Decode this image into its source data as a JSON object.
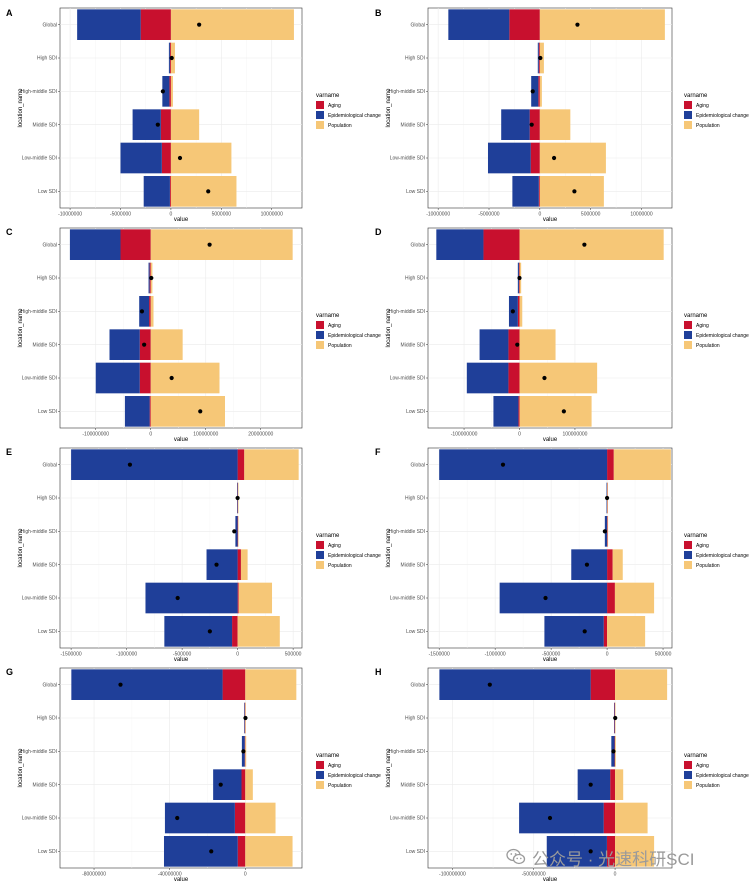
{
  "colors": {
    "Aging": "#C8102E",
    "Epidemiological change": "#1F3F99",
    "Population": "#F6C777"
  },
  "legend": {
    "title": "varname",
    "items": [
      "Aging",
      "Epidemiological change",
      "Population"
    ]
  },
  "watermark": {
    "text": "公众号 · 光速科研SCI",
    "icon": "wechat-icon"
  },
  "chart_data": [
    {
      "panel": "A",
      "type": "bar",
      "orientation": "horizontal",
      "stacked": "diverging",
      "xlabel": "value",
      "ylabel": "location_name",
      "xlim": [
        -11000000,
        13000000
      ],
      "xticks": [
        -10000000,
        -5000000,
        0,
        5000000,
        10000000
      ],
      "xticklabels": [
        "-10000000",
        "-5000000",
        "0",
        "5000000",
        "10000000"
      ],
      "categories": [
        "Global",
        "High SDI",
        "High-middle SDI",
        "Middle SDI",
        "Low-middle SDI",
        "Low SDI"
      ],
      "series": [
        {
          "name": "Aging",
          "values": [
            -3000000,
            -100000,
            -150000,
            -1000000,
            -900000,
            -100000
          ]
        },
        {
          "name": "Epidemiological change",
          "values": [
            -6300000,
            -100000,
            -700000,
            -2800000,
            -4100000,
            -2600000
          ]
        },
        {
          "name": "Population",
          "values": [
            12200000,
            400000,
            200000,
            2800000,
            6000000,
            6500000
          ]
        }
      ],
      "points": [
        2800000,
        80000,
        -800000,
        -1300000,
        900000,
        3700000
      ]
    },
    {
      "panel": "B",
      "type": "bar",
      "orientation": "horizontal",
      "stacked": "diverging",
      "xlabel": "value",
      "ylabel": "location_name",
      "xlim": [
        -11000000,
        13000000
      ],
      "xticks": [
        -10000000,
        -5000000,
        0,
        5000000,
        10000000
      ],
      "xticklabels": [
        "-10000000",
        "-5000000",
        "0",
        "5000000",
        "10000000"
      ],
      "categories": [
        "Global",
        "High SDI",
        "High-middle SDI",
        "Middle SDI",
        "Low-middle SDI",
        "Low SDI"
      ],
      "series": [
        {
          "name": "Aging",
          "values": [
            -3000000,
            -100000,
            -150000,
            -1000000,
            -900000,
            -100000
          ]
        },
        {
          "name": "Epidemiological change",
          "values": [
            -6000000,
            -100000,
            -700000,
            -2800000,
            -4200000,
            -2600000
          ]
        },
        {
          "name": "Population",
          "values": [
            12300000,
            400000,
            200000,
            3000000,
            6500000,
            6300000
          ]
        }
      ],
      "points": [
        3700000,
        50000,
        -700000,
        -800000,
        1400000,
        3400000
      ]
    },
    {
      "panel": "C",
      "type": "bar",
      "orientation": "horizontal",
      "stacked": "diverging",
      "xlabel": "value",
      "ylabel": "location_name",
      "xlim": [
        -165000000,
        275000000
      ],
      "xticks": [
        -100000000,
        0,
        100000000,
        200000000
      ],
      "xticklabels": [
        "-100000000",
        "0",
        "100000000",
        "200000000"
      ],
      "categories": [
        "Global",
        "High SDI",
        "High-middle SDI",
        "Middle SDI",
        "Low-middle SDI",
        "Low SDI"
      ],
      "series": [
        {
          "name": "Aging",
          "values": [
            -55000000,
            -2000000,
            -3000000,
            -20000000,
            -20000000,
            -2000000
          ]
        },
        {
          "name": "Epidemiological change",
          "values": [
            -92000000,
            -2000000,
            -18000000,
            -55000000,
            -80000000,
            -45000000
          ]
        },
        {
          "name": "Population",
          "values": [
            258000000,
            3000000,
            5000000,
            58000000,
            125000000,
            135000000
          ]
        }
      ],
      "points": [
        107000000,
        1000000,
        -16000000,
        -12000000,
        38000000,
        90000000
      ]
    },
    {
      "panel": "D",
      "type": "bar",
      "orientation": "horizontal",
      "stacked": "diverging",
      "xlabel": "value",
      "ylabel": "location_name",
      "xlim": [
        -165000000,
        275000000
      ],
      "xticks": [
        -100000000,
        0,
        100000000
      ],
      "xticklabels": [
        "-100000000",
        "0",
        "100000000"
      ],
      "categories": [
        "Global",
        "High SDI",
        "High-middle SDI",
        "Middle SDI",
        "Low-middle SDI",
        "Low SDI"
      ],
      "series": [
        {
          "name": "Aging",
          "values": [
            -65000000,
            -1000000,
            -3000000,
            -20000000,
            -20000000,
            -2000000
          ]
        },
        {
          "name": "Epidemiological change",
          "values": [
            -85000000,
            -2000000,
            -16000000,
            -52000000,
            -75000000,
            -45000000
          ]
        },
        {
          "name": "Population",
          "values": [
            260000000,
            3000000,
            5000000,
            65000000,
            140000000,
            130000000
          ]
        }
      ],
      "points": [
        117000000,
        0,
        -12000000,
        -4000000,
        45000000,
        80000000
      ]
    },
    {
      "panel": "E",
      "type": "bar",
      "orientation": "horizontal",
      "stacked": "diverging",
      "xlabel": "value",
      "ylabel": "location_name",
      "xlim": [
        -1600000,
        580000
      ],
      "xticks": [
        -1500000,
        -1000000,
        -500000,
        0,
        500000
      ],
      "xticklabels": [
        "-1500000",
        "-1000000",
        "-500000",
        "0",
        "500000"
      ],
      "categories": [
        "Global",
        "High SDI",
        "High-middle SDI",
        "Middle SDI",
        "Low-middle SDI",
        "Low SDI"
      ],
      "series": [
        {
          "name": "Aging",
          "values": [
            60000,
            3000,
            5000,
            30000,
            10000,
            -50000
          ]
        },
        {
          "name": "Epidemiological change",
          "values": [
            -1500000,
            -5000,
            -20000,
            -280000,
            -830000,
            -610000
          ]
        },
        {
          "name": "Population",
          "values": [
            490000,
            5000,
            4000,
            60000,
            300000,
            380000
          ]
        }
      ],
      "points": [
        -970000,
        0,
        -30000,
        -190000,
        -540000,
        -250000
      ]
    },
    {
      "panel": "F",
      "type": "bar",
      "orientation": "horizontal",
      "stacked": "diverging",
      "xlabel": "value",
      "ylabel": "location_name",
      "xlim": [
        -1600000,
        580000
      ],
      "xticks": [
        -1500000,
        -1000000,
        -500000,
        0,
        500000
      ],
      "xticklabels": [
        "-1500000",
        "-1000000",
        "-500000",
        "0",
        "500000"
      ],
      "categories": [
        "Global",
        "High SDI",
        "High-middle SDI",
        "Middle SDI",
        "Low-middle SDI",
        "Low SDI"
      ],
      "series": [
        {
          "name": "Aging",
          "values": [
            60000,
            3000,
            5000,
            50000,
            70000,
            -30000
          ]
        },
        {
          "name": "Epidemiological change",
          "values": [
            -1500000,
            -5000,
            -20000,
            -320000,
            -960000,
            -530000
          ]
        },
        {
          "name": "Population",
          "values": [
            510000,
            5000,
            4000,
            90000,
            350000,
            340000
          ]
        }
      ],
      "points": [
        -930000,
        0,
        -20000,
        -180000,
        -550000,
        -200000
      ]
    },
    {
      "panel": "G",
      "type": "bar",
      "orientation": "horizontal",
      "stacked": "diverging",
      "xlabel": "value",
      "ylabel": "location_name",
      "xlim": [
        -98000000,
        30000000
      ],
      "xticks": [
        -80000000,
        -40000000,
        0
      ],
      "xticklabels": [
        "-80000000",
        "-40000000",
        "0"
      ],
      "categories": [
        "Global",
        "High SDI",
        "High-middle SDI",
        "Middle SDI",
        "Low-middle SDI",
        "Low SDI"
      ],
      "series": [
        {
          "name": "Aging",
          "values": [
            -12000000,
            -300000,
            -300000,
            -2000000,
            -5500000,
            -4000000
          ]
        },
        {
          "name": "Epidemiological change",
          "values": [
            -80000000,
            -300000,
            -1500000,
            -15000000,
            -37000000,
            -39000000
          ]
        },
        {
          "name": "Population",
          "values": [
            27000000,
            300000,
            500000,
            4000000,
            16000000,
            25000000
          ]
        }
      ],
      "points": [
        -66000000,
        100000,
        -1000000,
        -13000000,
        -36000000,
        -18000000
      ]
    },
    {
      "panel": "H",
      "type": "bar",
      "orientation": "horizontal",
      "stacked": "diverging",
      "xlabel": "value",
      "ylabel": "location_name",
      "xlim": [
        -115000000,
        35000000
      ],
      "xticks": [
        -100000000,
        -50000000,
        0
      ],
      "xticklabels": [
        "-100000000",
        "-50000000",
        "0"
      ],
      "categories": [
        "Global",
        "High SDI",
        "High-middle SDI",
        "Middle SDI",
        "Low-middle SDI",
        "Low SDI"
      ],
      "series": [
        {
          "name": "Aging",
          "values": [
            -15000000,
            -300000,
            -300000,
            -3000000,
            -7000000,
            -5000000
          ]
        },
        {
          "name": "Epidemiological change",
          "values": [
            -93000000,
            -300000,
            -2000000,
            -20000000,
            -52000000,
            -37000000
          ]
        },
        {
          "name": "Population",
          "values": [
            32000000,
            300000,
            500000,
            5000000,
            20000000,
            24000000
          ]
        }
      ],
      "points": [
        -77000000,
        100000,
        -1000000,
        -15000000,
        -40000000,
        -15000000
      ]
    }
  ]
}
